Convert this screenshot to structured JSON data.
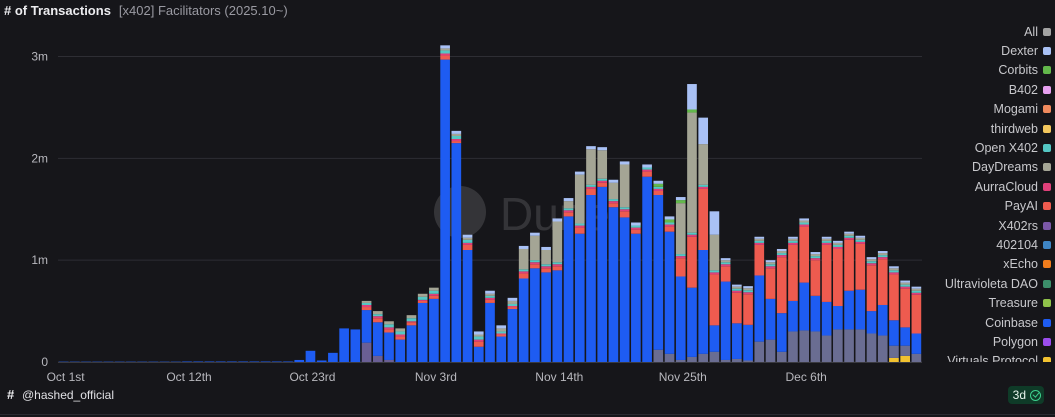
{
  "header": {
    "title": "# of Transactions",
    "subtitle": "[x402] Facilitators (2025.10~)"
  },
  "watermark": "Dune",
  "footer": {
    "hash": "#",
    "handle": "@hashed_official",
    "badge": "3d"
  },
  "chart_data": {
    "type": "bar",
    "stacked": true,
    "title": "# of Transactions",
    "subtitle": "[x402] Facilitators (2025.10~)",
    "xlabel": "",
    "ylabel": "",
    "ylim": [
      0,
      3300000
    ],
    "yticks": [
      0,
      1000000,
      2000000,
      3000000
    ],
    "ytick_labels": [
      "0",
      "1m",
      "2m",
      "3m"
    ],
    "xtick_labels": [
      "Oct 1st",
      "Oct 12th",
      "Oct 23rd",
      "Nov 3rd",
      "Nov 14th",
      "Nov 25th",
      "Dec 6th"
    ],
    "xtick_indices": [
      0,
      11,
      22,
      33,
      44,
      55,
      66
    ],
    "grid": true,
    "legend_position": "right",
    "legend": [
      {
        "name": "All",
        "color": "#a3a3a3"
      },
      {
        "name": "Dexter",
        "color": "#a9c1f5"
      },
      {
        "name": "Corbits",
        "color": "#63b84b"
      },
      {
        "name": "B402",
        "color": "#e7a0f0"
      },
      {
        "name": "Mogami",
        "color": "#f08a5d"
      },
      {
        "name": "thirdweb",
        "color": "#f3c75d"
      },
      {
        "name": "Open X402",
        "color": "#54c7c4"
      },
      {
        "name": "DayDreams",
        "color": "#a4a595"
      },
      {
        "name": "AurraCloud",
        "color": "#e0407a"
      },
      {
        "name": "PayAI",
        "color": "#ee5b4f"
      },
      {
        "name": "X402rs",
        "color": "#7b58a8"
      },
      {
        "name": "402104",
        "color": "#3f86c6"
      },
      {
        "name": "xEcho",
        "color": "#f07c1c"
      },
      {
        "name": "Ultravioleta DAO",
        "color": "#3c8f6a"
      },
      {
        "name": "Treasure",
        "color": "#8fc24a"
      },
      {
        "name": "Coinbase",
        "color": "#1e5cf2"
      },
      {
        "name": "Polygon",
        "color": "#9b4ded"
      },
      {
        "name": "Virtuals Protocol",
        "color": "#f2c230"
      }
    ],
    "dates": [
      "Oct 1st",
      "Oct 2nd",
      "Oct 3rd",
      "Oct 4th",
      "Oct 5th",
      "Oct 6th",
      "Oct 7th",
      "Oct 8th",
      "Oct 9th",
      "Oct 10th",
      "Oct 11th",
      "Oct 12th",
      "Oct 13th",
      "Oct 14th",
      "Oct 15th",
      "Oct 16th",
      "Oct 17th",
      "Oct 18th",
      "Oct 19th",
      "Oct 20th",
      "Oct 21st",
      "Oct 22nd",
      "Oct 23rd",
      "Oct 24th",
      "Oct 25th",
      "Oct 26th",
      "Oct 27th",
      "Oct 28th",
      "Oct 29th",
      "Oct 30th",
      "Oct 31st",
      "Nov 1st",
      "Nov 2nd",
      "Nov 3rd",
      "Nov 4th",
      "Nov 5th",
      "Nov 6th",
      "Nov 7th",
      "Nov 8th",
      "Nov 9th",
      "Nov 10th",
      "Nov 11th",
      "Nov 12th",
      "Nov 13th",
      "Nov 14th",
      "Nov 15th",
      "Nov 16th",
      "Nov 17th",
      "Nov 18th",
      "Nov 19th",
      "Nov 20th",
      "Nov 21st",
      "Nov 22nd",
      "Nov 23rd",
      "Nov 24th",
      "Nov 25th",
      "Nov 26th",
      "Nov 27th",
      "Nov 28th",
      "Nov 29th",
      "Nov 30th",
      "Dec 1st",
      "Dec 2nd",
      "Dec 3rd",
      "Dec 4th",
      "Dec 5th",
      "Dec 6th",
      "Dec 7th",
      "Dec 8th",
      "Dec 9th",
      "Dec 10th",
      "Dec 11th",
      "Dec 12th",
      "Dec 13th",
      "Dec 14th",
      "Dec 15th",
      "Dec 16th"
    ],
    "series": [
      {
        "name": "X402rs",
        "color": "#6a5f95",
        "values": [
          0,
          0,
          0,
          0,
          0,
          0,
          0,
          0,
          0,
          0,
          0,
          0,
          0,
          0,
          0,
          0,
          0,
          0,
          0,
          0,
          0,
          0,
          0,
          0,
          0,
          0,
          0,
          190000,
          60000,
          20000,
          0,
          0,
          0,
          0,
          0,
          0,
          0,
          0,
          0,
          0,
          0,
          0,
          0,
          0,
          0,
          0,
          0,
          0,
          0,
          0,
          0,
          0,
          0,
          0,
          0,
          0,
          0,
          0,
          0,
          0,
          0,
          0,
          0,
          0,
          0,
          0,
          0,
          0,
          0,
          0,
          0,
          0,
          0,
          0,
          0,
          0,
          0
        ]
      },
      {
        "name": "Virtuals Protocol",
        "color": "#f2c230",
        "values": [
          0,
          0,
          0,
          0,
          0,
          0,
          0,
          0,
          0,
          0,
          0,
          0,
          0,
          0,
          0,
          0,
          0,
          0,
          0,
          0,
          0,
          0,
          0,
          0,
          0,
          0,
          0,
          0,
          0,
          0,
          0,
          0,
          0,
          0,
          0,
          0,
          0,
          0,
          0,
          0,
          0,
          0,
          0,
          0,
          0,
          0,
          0,
          0,
          0,
          0,
          0,
          0,
          0,
          0,
          0,
          0,
          0,
          0,
          0,
          0,
          0,
          0,
          0,
          0,
          0,
          0,
          0,
          0,
          0,
          0,
          0,
          0,
          0,
          0,
          40000,
          60000,
          0
        ]
      },
      {
        "name": "402104",
        "color": "#6a6d92",
        "values": [
          0,
          0,
          0,
          0,
          0,
          0,
          0,
          0,
          0,
          0,
          0,
          0,
          0,
          0,
          0,
          0,
          0,
          0,
          0,
          0,
          0,
          0,
          0,
          0,
          0,
          0,
          0,
          0,
          0,
          0,
          0,
          0,
          0,
          0,
          0,
          0,
          0,
          0,
          0,
          0,
          0,
          0,
          0,
          0,
          0,
          0,
          0,
          0,
          0,
          0,
          0,
          0,
          0,
          120000,
          80000,
          20000,
          50000,
          80000,
          100000,
          20000,
          30000,
          15000,
          200000,
          220000,
          100000,
          300000,
          310000,
          300000,
          260000,
          320000,
          320000,
          320000,
          280000,
          260000,
          120000,
          100000,
          80000
        ]
      },
      {
        "name": "Coinbase",
        "color": "#1e5cf2",
        "values": [
          3000,
          3000,
          3000,
          3000,
          3000,
          3000,
          3000,
          3000,
          3000,
          3000,
          3000,
          5000,
          5000,
          5000,
          5000,
          5000,
          5000,
          5000,
          5000,
          5000,
          5000,
          20000,
          110000,
          15000,
          90000,
          330000,
          320000,
          320000,
          330000,
          270000,
          220000,
          360000,
          580000,
          620000,
          2970000,
          2150000,
          1100000,
          150000,
          580000,
          250000,
          520000,
          820000,
          920000,
          880000,
          900000,
          1430000,
          1260000,
          1640000,
          1720000,
          1520000,
          1420000,
          1260000,
          1820000,
          1520000,
          1200000,
          820000,
          680000,
          1020000,
          260000,
          770000,
          350000,
          350000,
          650000,
          400000,
          380000,
          300000,
          470000,
          350000,
          330000,
          230000,
          380000,
          390000,
          220000,
          300000,
          250000,
          180000,
          200000
        ]
      },
      {
        "name": "PayAI",
        "color": "#ee5b4f",
        "values": [
          0,
          0,
          0,
          0,
          0,
          0,
          0,
          0,
          0,
          0,
          0,
          0,
          0,
          0,
          0,
          0,
          0,
          0,
          0,
          0,
          0,
          0,
          0,
          0,
          0,
          0,
          0,
          30000,
          40000,
          30000,
          30000,
          30000,
          20000,
          30000,
          40000,
          20000,
          50000,
          50000,
          30000,
          20000,
          20000,
          50000,
          40000,
          40000,
          40000,
          40000,
          60000,
          60000,
          40000,
          40000,
          60000,
          40000,
          50000,
          40000,
          50000,
          180000,
          500000,
          600000,
          500000,
          150000,
          300000,
          300000,
          300000,
          300000,
          550000,
          550000,
          550000,
          350000,
          560000,
          560000,
          500000,
          450000,
          450000,
          450000,
          450000,
          380000,
          380000
        ]
      },
      {
        "name": "AurraCloud",
        "color": "#e0407a",
        "values": [
          0,
          0,
          0,
          0,
          0,
          0,
          0,
          0,
          0,
          0,
          0,
          0,
          0,
          0,
          0,
          0,
          0,
          0,
          0,
          0,
          0,
          0,
          0,
          0,
          0,
          0,
          0,
          20000,
          20000,
          20000,
          20000,
          10000,
          10000,
          20000,
          20000,
          20000,
          20000,
          20000,
          20000,
          10000,
          10000,
          20000,
          20000,
          20000,
          20000,
          20000,
          20000,
          20000,
          20000,
          20000,
          20000,
          20000,
          20000,
          20000,
          20000,
          20000,
          20000,
          20000,
          20000,
          20000,
          20000,
          20000,
          20000,
          20000,
          20000,
          20000,
          20000,
          20000,
          20000,
          20000,
          20000,
          20000,
          20000,
          20000,
          20000,
          20000,
          20000
        ]
      },
      {
        "name": "Open X402",
        "color": "#54c7c4",
        "values": [
          0,
          0,
          0,
          0,
          0,
          0,
          0,
          0,
          0,
          0,
          0,
          0,
          0,
          0,
          0,
          0,
          0,
          0,
          0,
          0,
          0,
          0,
          0,
          0,
          0,
          0,
          0,
          20000,
          20000,
          30000,
          30000,
          30000,
          30000,
          30000,
          30000,
          30000,
          30000,
          30000,
          20000,
          20000,
          20000,
          20000,
          20000,
          20000,
          20000,
          20000,
          20000,
          20000,
          20000,
          20000,
          20000,
          20000,
          20000,
          20000,
          20000,
          20000,
          20000,
          20000,
          20000,
          20000,
          20000,
          20000,
          20000,
          20000,
          20000,
          20000,
          20000,
          20000,
          20000,
          20000,
          20000,
          20000,
          20000,
          20000,
          20000,
          20000,
          20000
        ]
      },
      {
        "name": "DayDreams",
        "color": "#a4a595",
        "values": [
          0,
          0,
          0,
          0,
          0,
          0,
          0,
          0,
          0,
          0,
          0,
          0,
          0,
          0,
          0,
          0,
          0,
          0,
          0,
          0,
          0,
          0,
          0,
          0,
          0,
          0,
          0,
          20000,
          30000,
          30000,
          30000,
          30000,
          30000,
          30000,
          20000,
          20000,
          20000,
          20000,
          20000,
          30000,
          30000,
          200000,
          240000,
          140000,
          400000,
          70000,
          480000,
          350000,
          280000,
          160000,
          420000,
          0,
          0,
          0,
          0,
          500000,
          1180000,
          400000,
          350000,
          20000,
          20000,
          20000,
          20000,
          20000,
          20000,
          20000,
          20000,
          20000,
          20000,
          20000,
          20000,
          20000,
          20000,
          20000,
          20000,
          20000,
          20000
        ]
      },
      {
        "name": "Corbits",
        "color": "#63b84b",
        "values": [
          0,
          0,
          0,
          0,
          0,
          0,
          0,
          0,
          0,
          0,
          0,
          0,
          0,
          0,
          0,
          0,
          0,
          0,
          0,
          0,
          0,
          0,
          0,
          0,
          0,
          0,
          0,
          0,
          0,
          0,
          0,
          0,
          0,
          0,
          0,
          0,
          0,
          0,
          0,
          0,
          0,
          0,
          0,
          0,
          0,
          0,
          0,
          0,
          0,
          0,
          0,
          0,
          0,
          30000,
          30000,
          30000,
          30000,
          0,
          0,
          0,
          0,
          0,
          0,
          0,
          0,
          0,
          0,
          0,
          0,
          0,
          0,
          0,
          0,
          0,
          0,
          0,
          0
        ]
      },
      {
        "name": "Dexter",
        "color": "#a9c1f5",
        "values": [
          0,
          0,
          0,
          0,
          0,
          0,
          0,
          0,
          0,
          0,
          0,
          0,
          0,
          0,
          0,
          0,
          0,
          0,
          0,
          0,
          0,
          0,
          0,
          0,
          0,
          0,
          0,
          0,
          0,
          0,
          0,
          0,
          0,
          0,
          30000,
          30000,
          30000,
          30000,
          30000,
          30000,
          30000,
          30000,
          30000,
          30000,
          30000,
          30000,
          30000,
          30000,
          30000,
          30000,
          30000,
          30000,
          30000,
          30000,
          30000,
          30000,
          250000,
          260000,
          230000,
          20000,
          20000,
          20000,
          20000,
          20000,
          20000,
          20000,
          20000,
          20000,
          20000,
          20000,
          20000,
          20000,
          20000,
          20000,
          20000,
          20000,
          20000
        ]
      }
    ]
  }
}
